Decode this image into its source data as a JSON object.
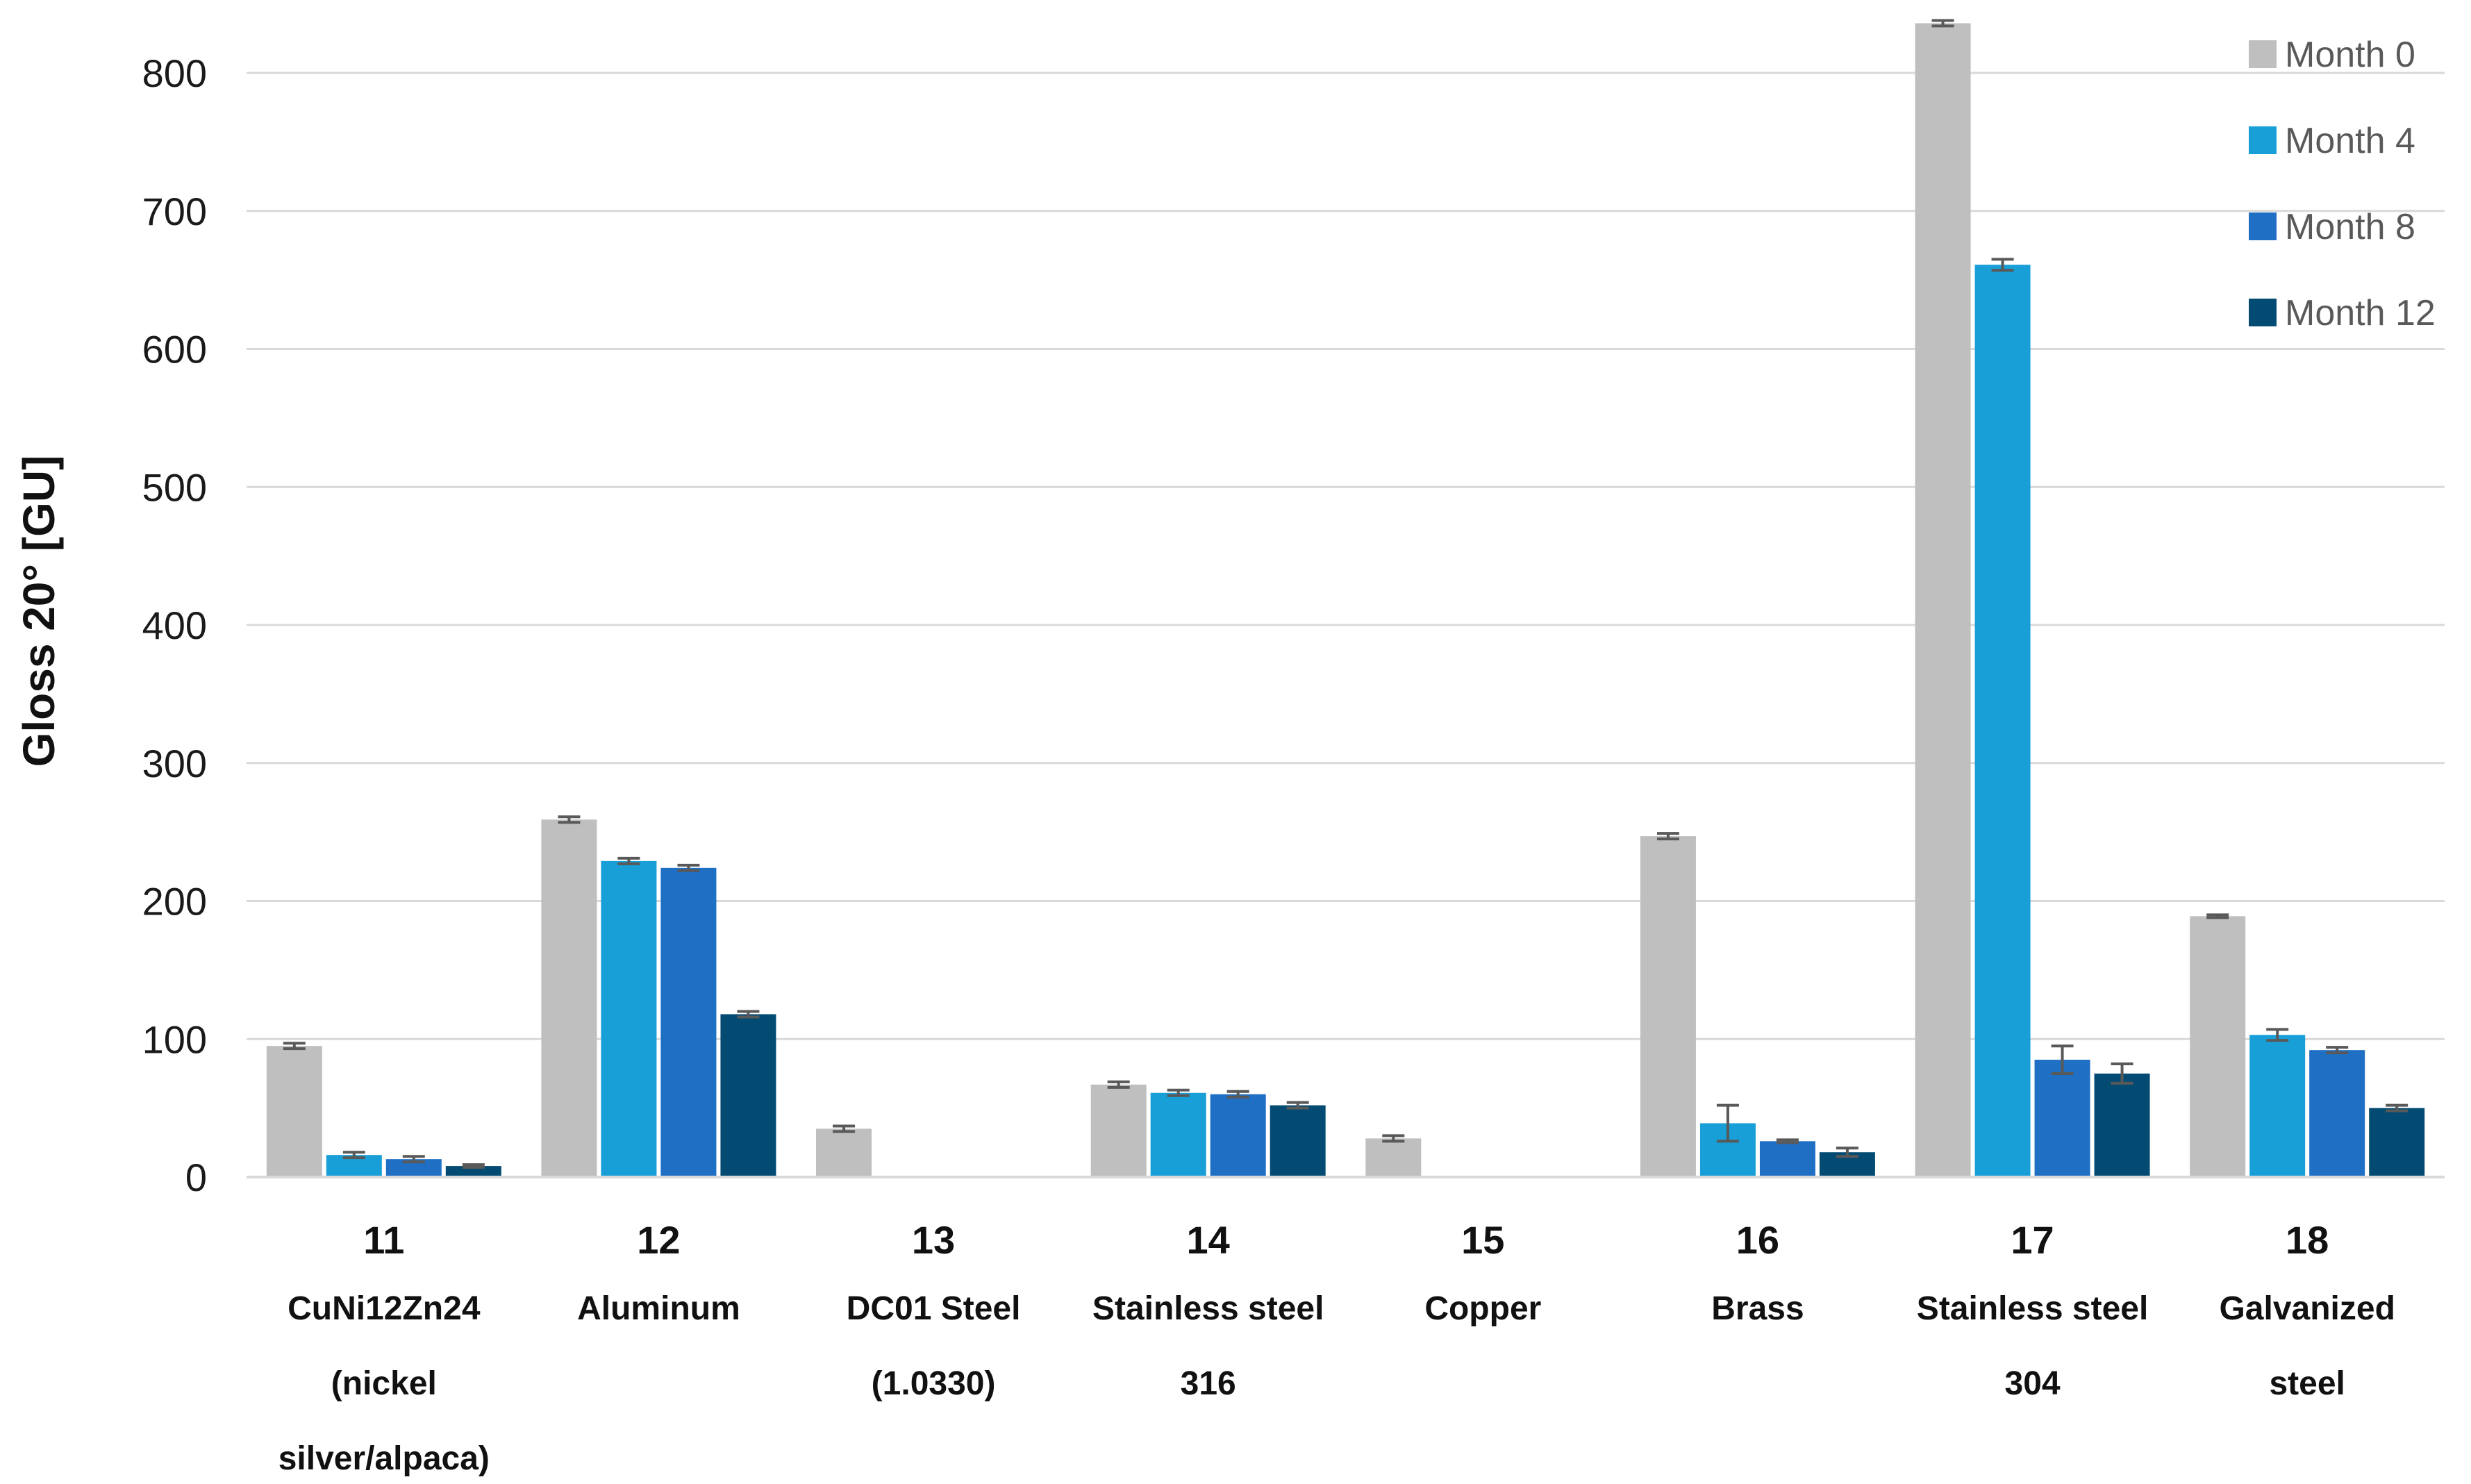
{
  "chart_data": {
    "type": "bar",
    "title": "",
    "xlabel": "",
    "ylabel": "Gloss 20° [GU]",
    "ylim": [
      0,
      800
    ],
    "yticks": [
      0,
      100,
      200,
      300,
      400,
      500,
      600,
      700,
      800
    ],
    "grid": true,
    "legend_position": "top-right",
    "categories": [
      {
        "number": "11",
        "name_lines": [
          "CuNi12Zn24",
          "(nickel",
          "silver/alpaca)"
        ]
      },
      {
        "number": "12",
        "name_lines": [
          "Aluminum"
        ]
      },
      {
        "number": "13",
        "name_lines": [
          "DC01 Steel",
          "(1.0330)"
        ]
      },
      {
        "number": "14",
        "name_lines": [
          "Stainless steel",
          "316"
        ]
      },
      {
        "number": "15",
        "name_lines": [
          "Copper"
        ]
      },
      {
        "number": "16",
        "name_lines": [
          "Brass"
        ]
      },
      {
        "number": "17",
        "name_lines": [
          "Stainless steel",
          "304"
        ]
      },
      {
        "number": "18",
        "name_lines": [
          "Galvanized",
          "steel"
        ]
      }
    ],
    "series": [
      {
        "name": "Month 0",
        "color": "#bfbfbf",
        "values": [
          95,
          259,
          35,
          67,
          28,
          247,
          836,
          189
        ],
        "errors": [
          2,
          2,
          2,
          2,
          2,
          2,
          2,
          1
        ]
      },
      {
        "name": "Month 4",
        "color": "#199fd8",
        "values": [
          16,
          229,
          null,
          61,
          null,
          39,
          661,
          103
        ],
        "errors": [
          2,
          2,
          null,
          2,
          null,
          13,
          4,
          4
        ]
      },
      {
        "name": "Month 8",
        "color": "#1f6fc5",
        "values": [
          13,
          224,
          null,
          60,
          null,
          26,
          85,
          92
        ],
        "errors": [
          2,
          2,
          null,
          2,
          null,
          1,
          10,
          2
        ]
      },
      {
        "name": "Month 12",
        "color": "#034b72",
        "values": [
          8,
          118,
          null,
          52,
          null,
          18,
          75,
          50
        ],
        "errors": [
          1,
          2,
          null,
          2,
          null,
          3,
          7,
          2
        ]
      }
    ]
  }
}
